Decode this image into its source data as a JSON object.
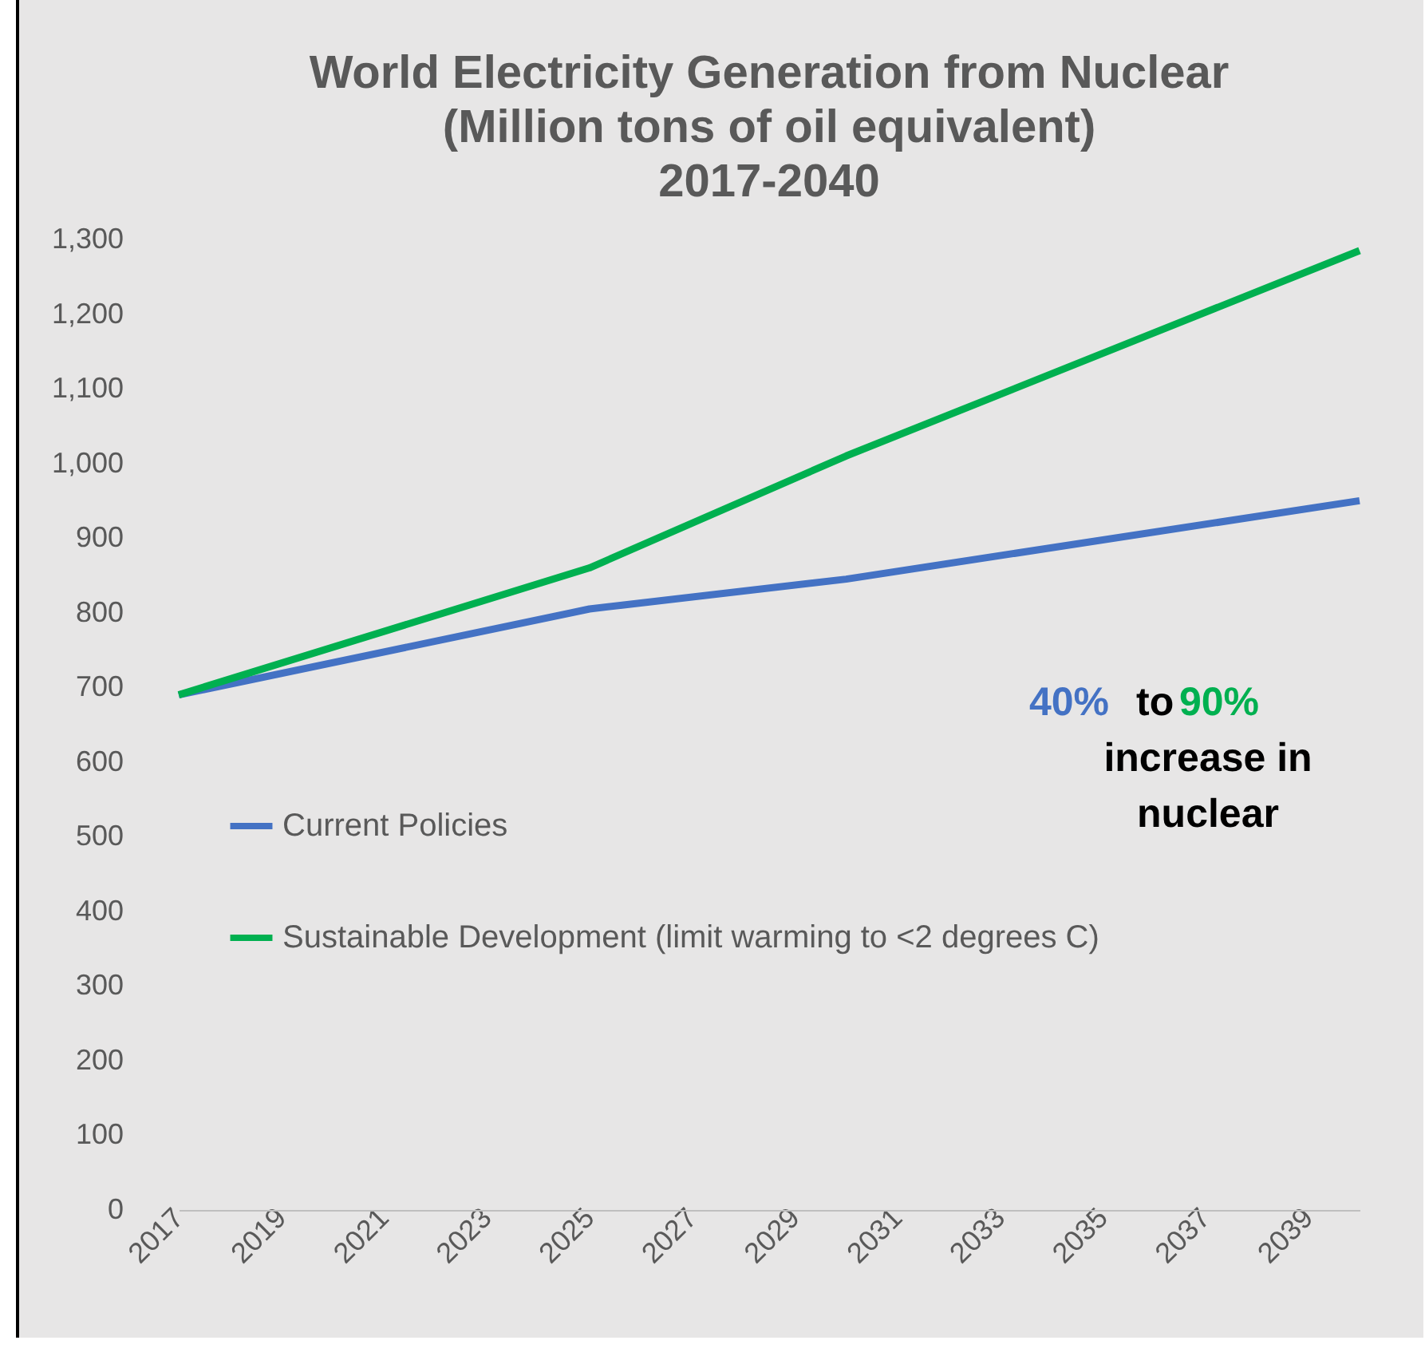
{
  "chart_data": {
    "type": "line",
    "title": "World Electricity Generation from Nuclear\n(Million tons of oil equivalent)\n2017-2040",
    "x": [
      2017,
      2025,
      2030,
      2040
    ],
    "series": [
      {
        "name": "Current Policies",
        "color": "#4472c4",
        "values": [
          690,
          805,
          845,
          950
        ]
      },
      {
        "name": "Sustainable Development (limit warming to <2 degrees C)",
        "color": "#00b050",
        "values": [
          690,
          860,
          1010,
          1285
        ]
      }
    ],
    "xlim": [
      2017,
      2040
    ],
    "xticks": [
      2017,
      2019,
      2021,
      2023,
      2025,
      2027,
      2029,
      2031,
      2033,
      2035,
      2037,
      2039
    ],
    "ylim": [
      0,
      1300
    ],
    "yticks": [
      0,
      100,
      200,
      300,
      400,
      500,
      600,
      700,
      800,
      900,
      {
        "value": 1000,
        "label": "1,000"
      },
      {
        "value": 1100,
        "label": "1,100"
      },
      {
        "value": 1200,
        "label": "1,200"
      },
      {
        "value": 1300,
        "label": "1,300"
      }
    ],
    "grid": false,
    "legend": "left",
    "marker": "none",
    "line_style": "solid",
    "annotations": [
      "40%",
      "to",
      "90%",
      "increase in",
      "nuclear"
    ]
  }
}
